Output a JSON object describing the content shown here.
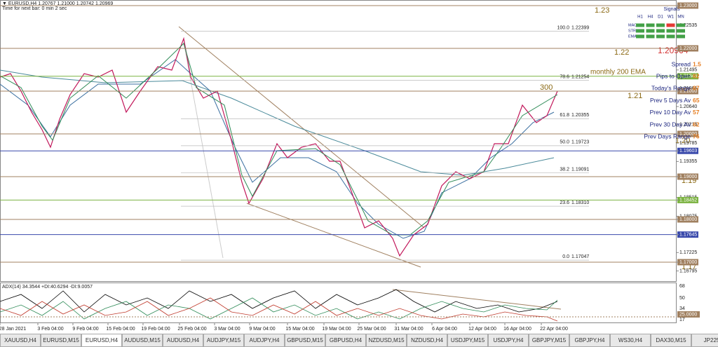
{
  "header": {
    "symbol": "▼ EURUSD,H4  1.20767 1.21000 1.20742 1.20969",
    "timer": "Time for next bar: 0 min 2 sec"
  },
  "price_scale": [
    "1.23000",
    "1.22535",
    "1.22000",
    "1.21495",
    "1.21348",
    "1.21065",
    "1.21000",
    "1.20640",
    "1.20215",
    "1.20000",
    "1.19785",
    "1.19603",
    "1.19355",
    "1.19000",
    "1.18515",
    "1.18452",
    "1.18075",
    "1.18000",
    "1.17645",
    "1.17225",
    "1.17000",
    "1.16795"
  ],
  "fib_levels": [
    {
      "level": "100.0",
      "price": "1.22399"
    },
    {
      "level": "78.6",
      "price": "1.21254"
    },
    {
      "level": "61.8",
      "price": "1.20355"
    },
    {
      "level": "50.0",
      "price": "1.19723"
    },
    {
      "level": "38.2",
      "price": "1.19091"
    },
    {
      "level": "23.6",
      "price": "1.18310"
    },
    {
      "level": "0.0",
      "price": "1.17047"
    }
  ],
  "annotations": {
    "l123": "1.23",
    "l122": "1.22",
    "l121": "1.21",
    "l120": "1.20",
    "l119": "1.19",
    "l117": "1.17",
    "pips300": "300",
    "ema": "monthly 200 EMA",
    "price": "1.20964"
  },
  "signals": {
    "title": "Signals",
    "columns": [
      "H1",
      "H4",
      "D1",
      "W1",
      "MN"
    ],
    "rows": [
      "MACD",
      "STR",
      "EMA"
    ]
  },
  "stats": [
    {
      "label": "Spread",
      "value": "1.5"
    },
    {
      "label": "Pips to Open",
      "value": "82"
    },
    {
      "label": "Today's Range",
      "value": "87"
    },
    {
      "label": "Prev 5 Days Av",
      "value": "65"
    },
    {
      "label": "Prev 10 Day Av",
      "value": "57"
    },
    {
      "label": "Prev 30 Day Av",
      "value": "62"
    },
    {
      "label": "Prev Days Range",
      "value": "76"
    }
  ],
  "indicator": {
    "label": "ADX(14) 34.3544 +DI:40.6294 -DI:9.0057",
    "scale": [
      "68",
      "50",
      "34",
      "25.0000",
      "17"
    ]
  },
  "time_axis": [
    "28 Jan 2021",
    "3 Feb 04:00",
    "9 Feb 04:00",
    "15 Feb 04:00",
    "19 Feb 04:00",
    "25 Feb 04:00",
    "3 Mar 04:00",
    "9 Mar 04:00",
    "15 Mar 04:00",
    "19 Mar 04:00",
    "25 Mar 04:00",
    "31 Mar 04:00",
    "6 Apr 04:00",
    "12 Apr 04:00",
    "16 Apr 04:00",
    "22 Apr 04:00"
  ],
  "tabs": [
    "XAUUSD,H4",
    "EURUSD,M15",
    "EURUSD,H4",
    "AUDUSD,M15",
    "AUDUSD,H4",
    "AUDJPY,M15",
    "AUDJPY,H4",
    "GBPUSD,M15",
    "GBPUSD,H4",
    "NZDUSD,M15",
    "NZDUSD,H4",
    "USDJPY,M15",
    "USDJPY,H4",
    "GBPJPY,M15",
    "GBPJPY,H4",
    "WS30,H4",
    "DAX30,M15",
    "JP225"
  ]
}
